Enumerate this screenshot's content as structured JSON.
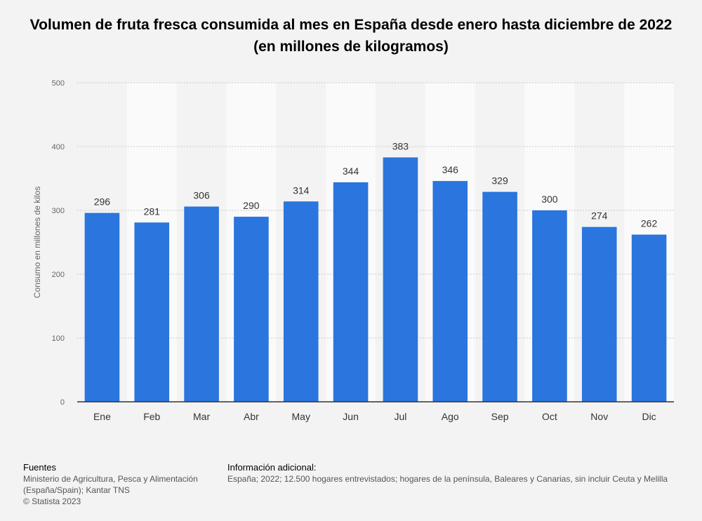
{
  "title": "Volumen de fruta fresca consumida al mes en España desde enero hasta diciembre de 2022 (en millones de kilogramos)",
  "chart_data": {
    "type": "bar",
    "categories": [
      "Ene",
      "Feb",
      "Mar",
      "Abr",
      "May",
      "Jun",
      "Jul",
      "Ago",
      "Sep",
      "Oct",
      "Nov",
      "Dic"
    ],
    "values": [
      296,
      281,
      306,
      290,
      314,
      344,
      383,
      346,
      329,
      300,
      274,
      262
    ],
    "ylabel": "Consumo en millones de kilos",
    "xlabel": "",
    "ylim": [
      0,
      500
    ],
    "yticks": [
      0,
      100,
      200,
      300,
      400,
      500
    ],
    "grid": true,
    "bar_color": "#2a75de"
  },
  "footer": {
    "sources_heading": "Fuentes",
    "sources_line1": "Ministerio de Agricultura, Pesca y Alimentación",
    "sources_line2": "(España/Spain); Kantar TNS",
    "copyright": "© Statista 2023",
    "info_heading": "Información adicional:",
    "info_text": "España; 2022; 12.500 hogares entrevistados; hogares de la península, Baleares y Canarias, sin incluir Ceuta y Melilla"
  }
}
